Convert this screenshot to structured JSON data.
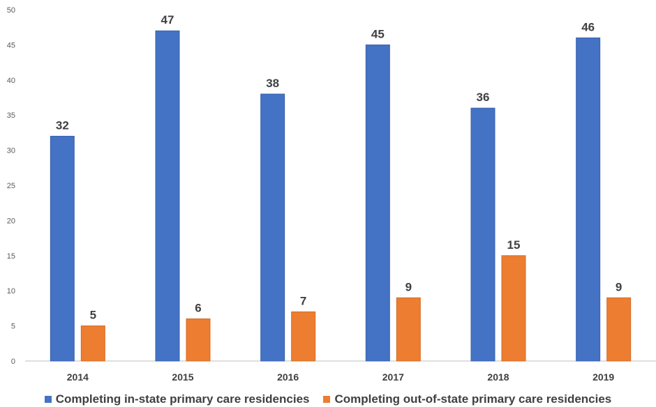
{
  "chart_data": {
    "type": "bar",
    "categories": [
      "2014",
      "2015",
      "2016",
      "2017",
      "2018",
      "2019"
    ],
    "series": [
      {
        "name": "Completing in-state primary care residencies",
        "color": "#4472C4",
        "values": [
          32,
          47,
          38,
          45,
          36,
          46
        ]
      },
      {
        "name": "Completing out-of-state primary care residencies",
        "color": "#ED7D31",
        "values": [
          5,
          6,
          7,
          9,
          15,
          9
        ]
      }
    ],
    "yticks": [
      "0",
      "5",
      "10",
      "15",
      "20",
      "25",
      "30",
      "35",
      "40",
      "45",
      "50"
    ],
    "ylim": [
      0,
      50
    ],
    "grid": false,
    "legend_position": "bottom"
  }
}
